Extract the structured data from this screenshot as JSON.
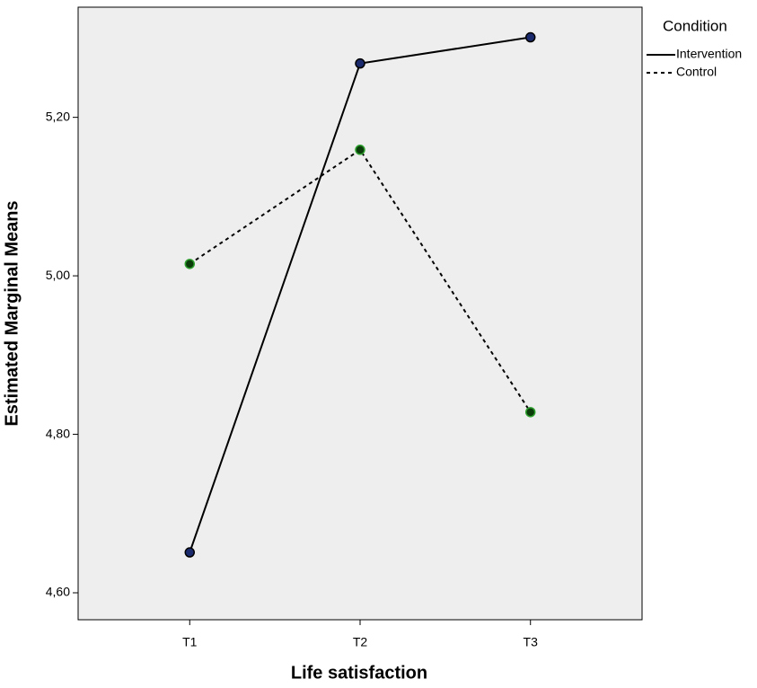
{
  "chart_data": {
    "type": "line",
    "x_label": "Life satisfaction",
    "y_label": "Estimated Marginal Means",
    "categories": [
      "T1",
      "T2",
      "T3"
    ],
    "series": [
      {
        "name": "Intervention",
        "color": "#000000",
        "line_style": "solid",
        "marker_color": "#1a2a6c",
        "marker_edge": "#000000",
        "values": [
          4.651,
          5.268,
          5.301
        ]
      },
      {
        "name": "Control",
        "color": "#000000",
        "line_style": "dotted",
        "marker_color": "#0b3d0b",
        "marker_edge": "#2ea02e",
        "values": [
          5.015,
          5.159,
          4.828
        ]
      }
    ],
    "ylim": [
      4.566,
      5.339
    ],
    "yticks": [
      {
        "value": 4.6,
        "label": "4,60"
      },
      {
        "value": 4.8,
        "label": "4,80"
      },
      {
        "value": 5.0,
        "label": "5,00"
      },
      {
        "value": 5.2,
        "label": "5,20"
      }
    ],
    "legend_title": "Condition",
    "legend_position": "outside-right",
    "background": "#eeeeee"
  }
}
